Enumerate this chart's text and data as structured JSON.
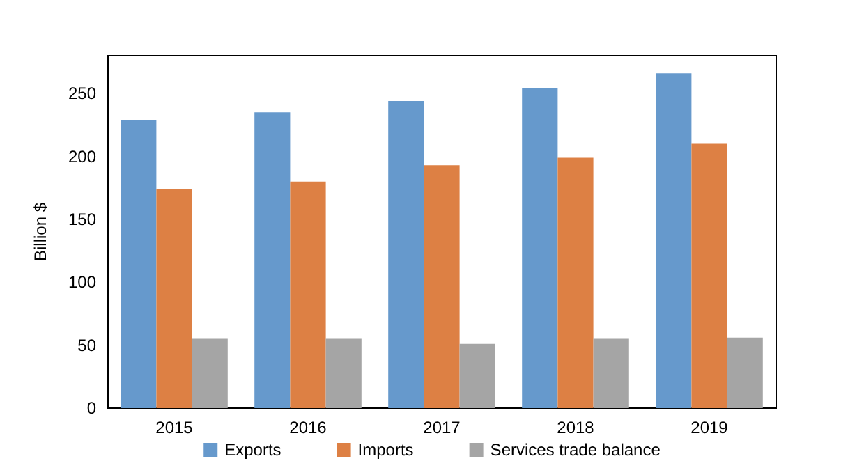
{
  "chart_data": {
    "type": "bar",
    "ylabel": "Billion $",
    "categories": [
      "2015",
      "2016",
      "2017",
      "2018",
      "2019"
    ],
    "series": [
      {
        "name": "Exports",
        "color": "#6699cc",
        "values": [
          229,
          235,
          244,
          254,
          266
        ]
      },
      {
        "name": "Imports",
        "color": "#dd8044",
        "values": [
          174,
          180,
          193,
          199,
          210
        ]
      },
      {
        "name": "Services trade balance",
        "color": "#a5a5a5",
        "values": [
          55,
          55,
          51,
          55,
          56
        ]
      }
    ],
    "ylim": [
      0,
      280
    ],
    "yticks": [
      0,
      50,
      100,
      150,
      200,
      250
    ],
    "grid": false,
    "legend": "bottom"
  }
}
